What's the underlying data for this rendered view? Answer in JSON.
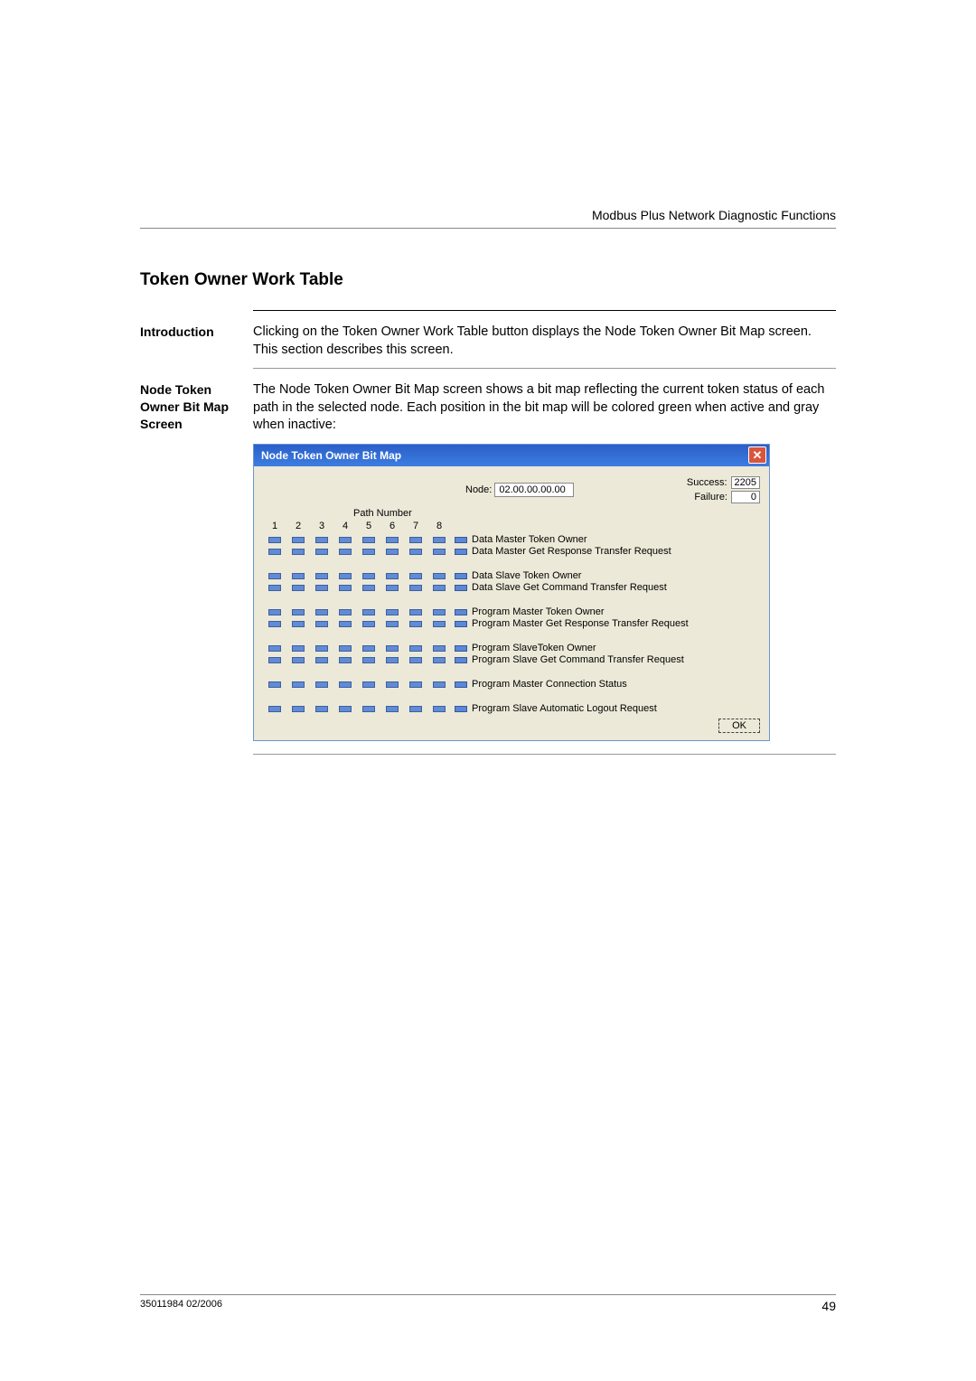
{
  "header": "Modbus Plus Network Diagnostic Functions",
  "title": "Token Owner Work Table",
  "intro": {
    "label": "Introduction",
    "text": "Clicking on the Token Owner Work Table button displays the Node Token Owner Bit Map screen. This section describes this screen."
  },
  "node_section": {
    "label1": "Node Token",
    "label2": "Owner Bit Map",
    "label3": "Screen",
    "text": "The Node Token Owner Bit Map screen shows a bit map reflecting the current token status of each path in the selected node. Each position in the bit map will be colored green when active and gray when inactive:"
  },
  "dialog": {
    "title": "Node Token Owner Bit Map",
    "node_label": "Node:",
    "node_value": "02.00.00.00.00",
    "success_label": "Success:",
    "success_value": "2205",
    "failure_label": "Failure:",
    "failure_value": "0",
    "path_number_label": "Path Number",
    "columns": [
      "1",
      "2",
      "3",
      "4",
      "5",
      "6",
      "7",
      "8"
    ],
    "ok_label": "OK",
    "colors": {
      "inactive": "#aab0bb",
      "inactive2": "#9aa3a8",
      "active_blue": "#2a5fc9",
      "titlebar_bg": "#2a5fc9",
      "dialog_bg": "#ece9d8",
      "close_bg": "#d9553c"
    },
    "groups": [
      {
        "rows": [
          {
            "label": "Data Master Token Owner",
            "cells": [
              0,
              0,
              0,
              0,
              0,
              0,
              0,
              1
            ]
          },
          {
            "label": "Data Master Get Response Transfer Request",
            "cells": [
              0,
              0,
              0,
              0,
              0,
              0,
              0,
              0
            ]
          }
        ]
      },
      {
        "rows": [
          {
            "label": "Data Slave Token Owner",
            "cells": [
              0,
              0,
              0,
              0,
              0,
              0,
              0,
              1
            ]
          },
          {
            "label": "Data Slave Get Command Transfer Request",
            "cells": [
              0,
              0,
              0,
              0,
              0,
              0,
              0,
              0
            ]
          }
        ]
      },
      {
        "rows": [
          {
            "label": "Program Master Token Owner",
            "cells": [
              0,
              0,
              0,
              0,
              0,
              0,
              0,
              1
            ]
          },
          {
            "label": "Program Master Get Response Transfer Request",
            "cells": [
              0,
              0,
              0,
              0,
              0,
              0,
              0,
              0
            ]
          }
        ]
      },
      {
        "rows": [
          {
            "label": "Program SlaveToken Owner",
            "cells": [
              0,
              0,
              0,
              0,
              0,
              0,
              0,
              1
            ]
          },
          {
            "label": "Program Slave Get Command Transfer Request",
            "cells": [
              0,
              0,
              0,
              0,
              0,
              0,
              0,
              0
            ]
          }
        ]
      },
      {
        "rows": [
          {
            "label": "Program Master Connection Status",
            "cells": [
              0,
              0,
              0,
              0,
              0,
              0,
              0,
              0
            ]
          }
        ]
      },
      {
        "rows": [
          {
            "label": "Program Slave Automatic Logout Request",
            "cells": [
              0,
              0,
              0,
              0,
              0,
              0,
              0,
              0
            ]
          }
        ]
      }
    ]
  },
  "footer": {
    "doc_id": "35011984 02/2006",
    "page": "49"
  }
}
